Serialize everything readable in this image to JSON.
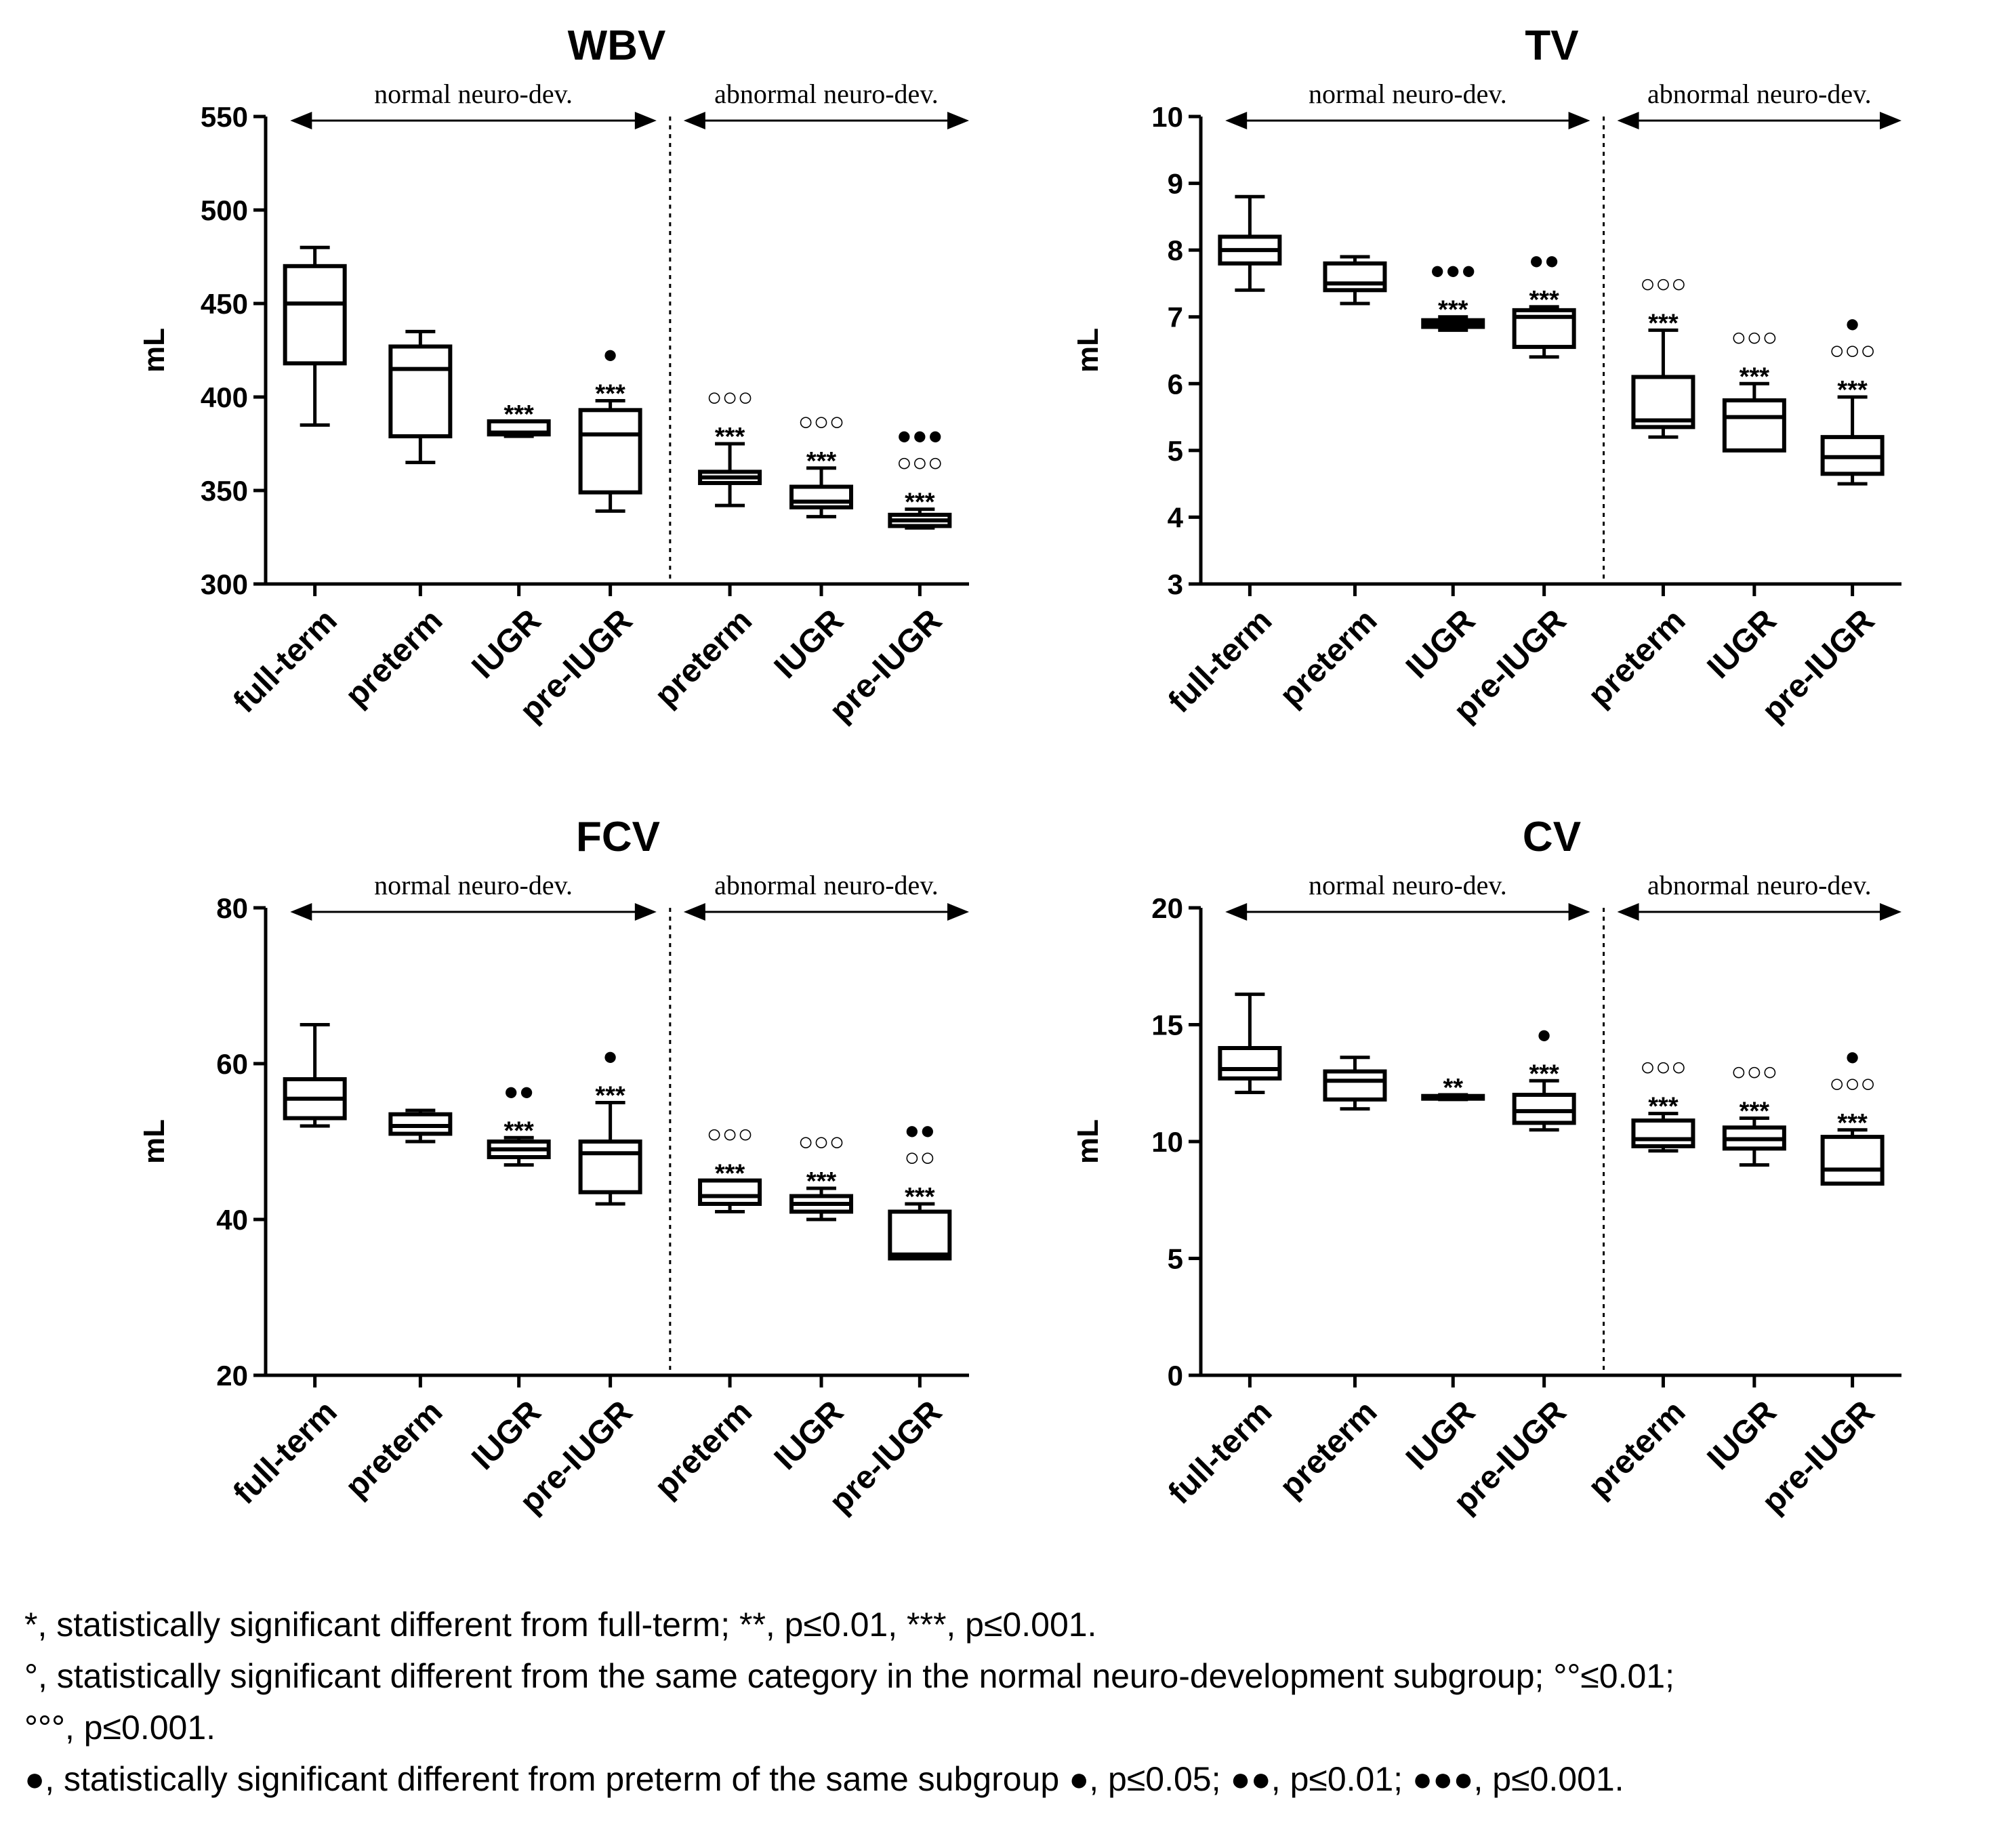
{
  "chart_data": [
    {
      "type": "box",
      "title": "WBV",
      "ylabel": "mL",
      "ylim": [
        300,
        550
      ],
      "yticks": [
        300,
        350,
        400,
        450,
        500,
        550
      ],
      "groups": [
        "normal neuro-dev.",
        "abnormal neuro-dev."
      ],
      "categories": [
        "full-term",
        "preterm",
        "IUGR",
        "pre-IUGR",
        "preterm",
        "IUGR",
        "pre-IUGR"
      ],
      "boxes": [
        {
          "min": 385,
          "q1": 418,
          "median": 450,
          "q3": 470,
          "max": 480,
          "annotations": []
        },
        {
          "min": 365,
          "q1": 379,
          "median": 415,
          "q3": 427,
          "max": 435,
          "annotations": []
        },
        {
          "min": 379,
          "q1": 380,
          "median": 381,
          "q3": 387,
          "max": 387,
          "annotations": [
            "***"
          ]
        },
        {
          "min": 339,
          "q1": 349,
          "median": 380,
          "q3": 393,
          "max": 398,
          "annotations": [
            "***",
            "●"
          ]
        },
        {
          "min": 342,
          "q1": 354,
          "median": 357,
          "q3": 360,
          "max": 375,
          "annotations": [
            "***",
            "○○○"
          ]
        },
        {
          "min": 336,
          "q1": 341,
          "median": 344,
          "q3": 352,
          "max": 362,
          "annotations": [
            "***",
            "○○○"
          ]
        },
        {
          "min": 330,
          "q1": 331,
          "median": 334,
          "q3": 337,
          "max": 340,
          "annotations": [
            "***",
            "○○○",
            "●●●"
          ]
        }
      ]
    },
    {
      "type": "box",
      "title": "TV",
      "ylabel": "mL",
      "ylim": [
        3,
        10
      ],
      "yticks": [
        3,
        4,
        5,
        6,
        7,
        8,
        9,
        10
      ],
      "groups": [
        "normal neuro-dev.",
        "abnormal neuro-dev."
      ],
      "categories": [
        "full-term",
        "preterm",
        "IUGR",
        "pre-IUGR",
        "preterm",
        "IUGR",
        "pre-IUGR"
      ],
      "boxes": [
        {
          "min": 7.4,
          "q1": 7.8,
          "median": 8.0,
          "q3": 8.2,
          "max": 8.8,
          "annotations": []
        },
        {
          "min": 7.2,
          "q1": 7.4,
          "median": 7.5,
          "q3": 7.8,
          "max": 7.9,
          "annotations": []
        },
        {
          "min": 6.8,
          "q1": 6.85,
          "median": 6.9,
          "q3": 6.95,
          "max": 7.0,
          "annotations": [
            "***",
            "●●●"
          ]
        },
        {
          "min": 6.4,
          "q1": 6.55,
          "median": 7.0,
          "q3": 7.1,
          "max": 7.15,
          "annotations": [
            "***",
            "●●"
          ]
        },
        {
          "min": 5.2,
          "q1": 5.35,
          "median": 5.45,
          "q3": 6.1,
          "max": 6.8,
          "annotations": [
            "***",
            "○○○"
          ]
        },
        {
          "min": 5.0,
          "q1": 5.0,
          "median": 5.5,
          "q3": 5.75,
          "max": 6.0,
          "annotations": [
            "***",
            "○○○"
          ]
        },
        {
          "min": 4.5,
          "q1": 4.65,
          "median": 4.9,
          "q3": 5.2,
          "max": 5.8,
          "annotations": [
            "***",
            "○○○",
            "●"
          ]
        }
      ]
    },
    {
      "type": "box",
      "title": "FCV",
      "ylabel": "mL",
      "ylim": [
        20,
        80
      ],
      "yticks": [
        20,
        40,
        60,
        80
      ],
      "groups": [
        "normal neuro-dev.",
        "abnormal neuro-dev."
      ],
      "categories": [
        "full-term",
        "preterm",
        "IUGR",
        "pre-IUGR",
        "preterm",
        "IUGR",
        "pre-IUGR"
      ],
      "boxes": [
        {
          "min": 52,
          "q1": 53,
          "median": 55.5,
          "q3": 58,
          "max": 65,
          "annotations": []
        },
        {
          "min": 50,
          "q1": 51,
          "median": 52,
          "q3": 53.5,
          "max": 54,
          "annotations": []
        },
        {
          "min": 47,
          "q1": 48,
          "median": 49,
          "q3": 50,
          "max": 50.5,
          "annotations": [
            "***",
            "●●"
          ]
        },
        {
          "min": 42,
          "q1": 43.5,
          "median": 48.5,
          "q3": 50,
          "max": 55,
          "annotations": [
            "***",
            "●"
          ]
        },
        {
          "min": 41,
          "q1": 42,
          "median": 43,
          "q3": 45,
          "max": 45,
          "annotations": [
            "***",
            "○○○"
          ]
        },
        {
          "min": 40,
          "q1": 41,
          "median": 42,
          "q3": 43,
          "max": 44,
          "annotations": [
            "***",
            "○○○"
          ]
        },
        {
          "min": 35,
          "q1": 35,
          "median": 35.5,
          "q3": 41,
          "max": 42,
          "annotations": [
            "***",
            "○○",
            "●●"
          ]
        }
      ]
    },
    {
      "type": "box",
      "title": "CV",
      "ylabel": "mL",
      "ylim": [
        0,
        20
      ],
      "yticks": [
        0,
        5,
        10,
        15,
        20
      ],
      "groups": [
        "normal neuro-dev.",
        "abnormal neuro-dev."
      ],
      "categories": [
        "full-term",
        "preterm",
        "IUGR",
        "pre-IUGR",
        "preterm",
        "IUGR",
        "pre-IUGR"
      ],
      "boxes": [
        {
          "min": 12.1,
          "q1": 12.7,
          "median": 13.1,
          "q3": 14.0,
          "max": 16.3,
          "annotations": []
        },
        {
          "min": 11.4,
          "q1": 11.8,
          "median": 12.6,
          "q3": 13.0,
          "max": 13.6,
          "annotations": []
        },
        {
          "min": 11.8,
          "q1": 11.85,
          "median": 11.9,
          "q3": 11.95,
          "max": 12.0,
          "annotations": [
            "**"
          ]
        },
        {
          "min": 10.5,
          "q1": 10.8,
          "median": 11.3,
          "q3": 12.0,
          "max": 12.6,
          "annotations": [
            "***",
            "●"
          ]
        },
        {
          "min": 9.6,
          "q1": 9.8,
          "median": 10.1,
          "q3": 10.9,
          "max": 11.2,
          "annotations": [
            "***",
            "○○○"
          ]
        },
        {
          "min": 9.0,
          "q1": 9.7,
          "median": 10.1,
          "q3": 10.6,
          "max": 11.0,
          "annotations": [
            "***",
            "○○○"
          ]
        },
        {
          "min": 8.2,
          "q1": 8.2,
          "median": 8.8,
          "q3": 10.2,
          "max": 10.5,
          "annotations": [
            "***",
            "○○○",
            "●"
          ]
        }
      ]
    }
  ],
  "footnotes": [
    "*, statistically significant different from full-term; **, p≤0.01, ***, p≤0.001.",
    "°, statistically significant different from the same category in the normal neuro-development subgroup; °°≤0.01;",
    "°°°, p≤0.001.",
    "●, statistically significant different from preterm of the same subgroup  ●, p≤0.05;  ●●, p≤0.01; ●●●, p≤0.001."
  ]
}
